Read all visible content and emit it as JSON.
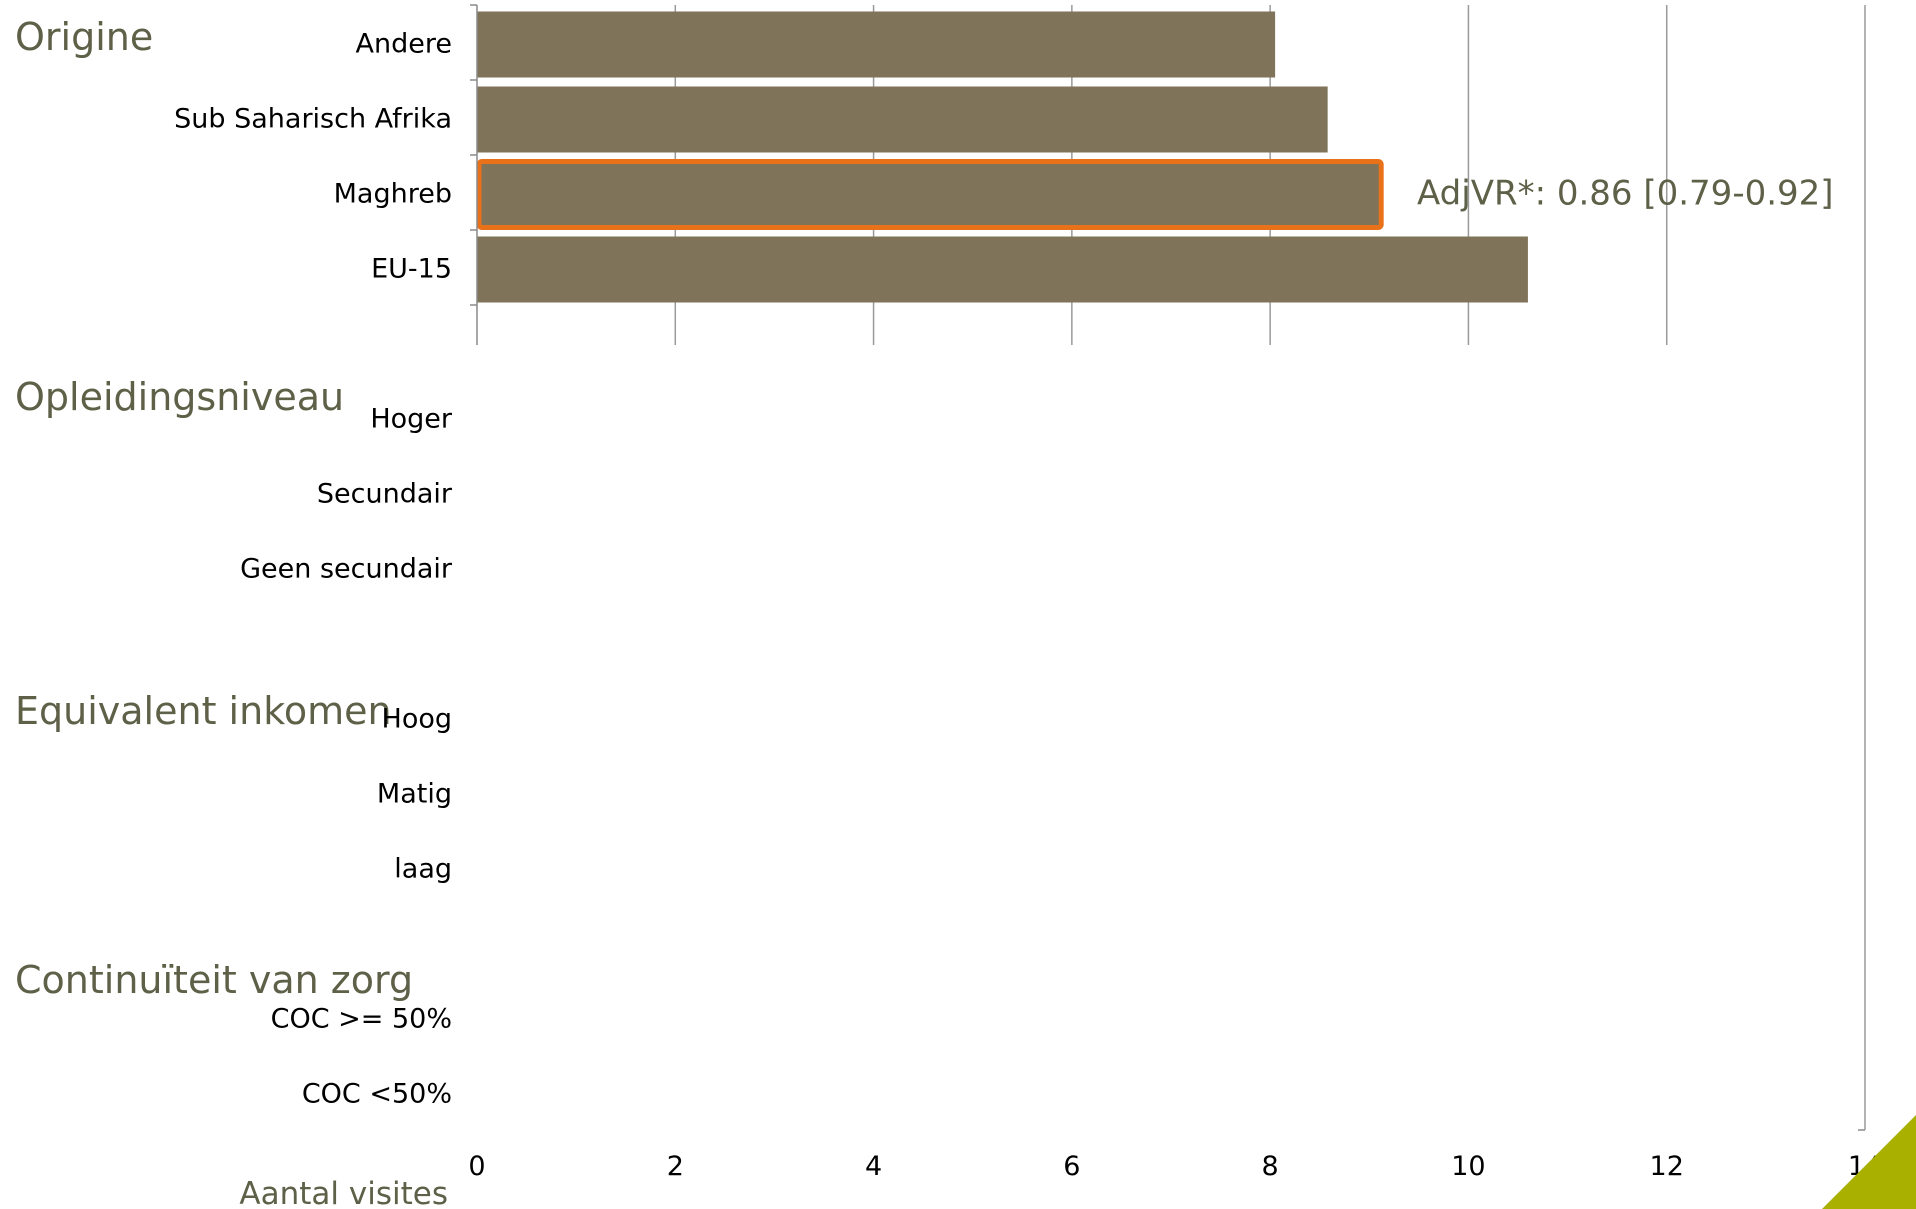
{
  "chart_data": {
    "type": "bar",
    "orientation": "horizontal",
    "sections": [
      {
        "title": "Origine",
        "categories": [
          "Andere",
          "Sub Saharisch Afrika",
          "Maghreb",
          "EU-15"
        ],
        "values": [
          8.05,
          8.58,
          9.12,
          10.6
        ]
      },
      {
        "title": "Opleidingsniveau",
        "categories": [
          "Hoger",
          "Secundair",
          "Geen secundair"
        ],
        "values": [
          null,
          null,
          null
        ]
      },
      {
        "title": "Equivalent inkomen",
        "categories": [
          "Hoog",
          "Matig",
          "laag"
        ],
        "values": [
          null,
          null,
          null
        ]
      },
      {
        "title": "Continuïteit van zorg",
        "categories": [
          "COC >= 50%",
          "COC <50%"
        ],
        "values": [
          null,
          null
        ]
      }
    ],
    "highlight": {
      "section": 0,
      "index": 2,
      "annotation": "AdjVR*: 0.86 [0.79-0.92]"
    },
    "xlabel": "Aantal visites",
    "xlim": [
      0,
      14
    ],
    "xticks": [
      "0",
      "2",
      "4",
      "6",
      "8",
      "10",
      "12",
      "14"
    ],
    "grid": "vertical"
  },
  "colors": {
    "bar": "#7f7359",
    "highlight_outline": "#e8711a",
    "section_title": "#5e6048",
    "axis": "#8a8a8a",
    "grid": "#9a9a9a",
    "corner_accent": "#a9b000"
  }
}
